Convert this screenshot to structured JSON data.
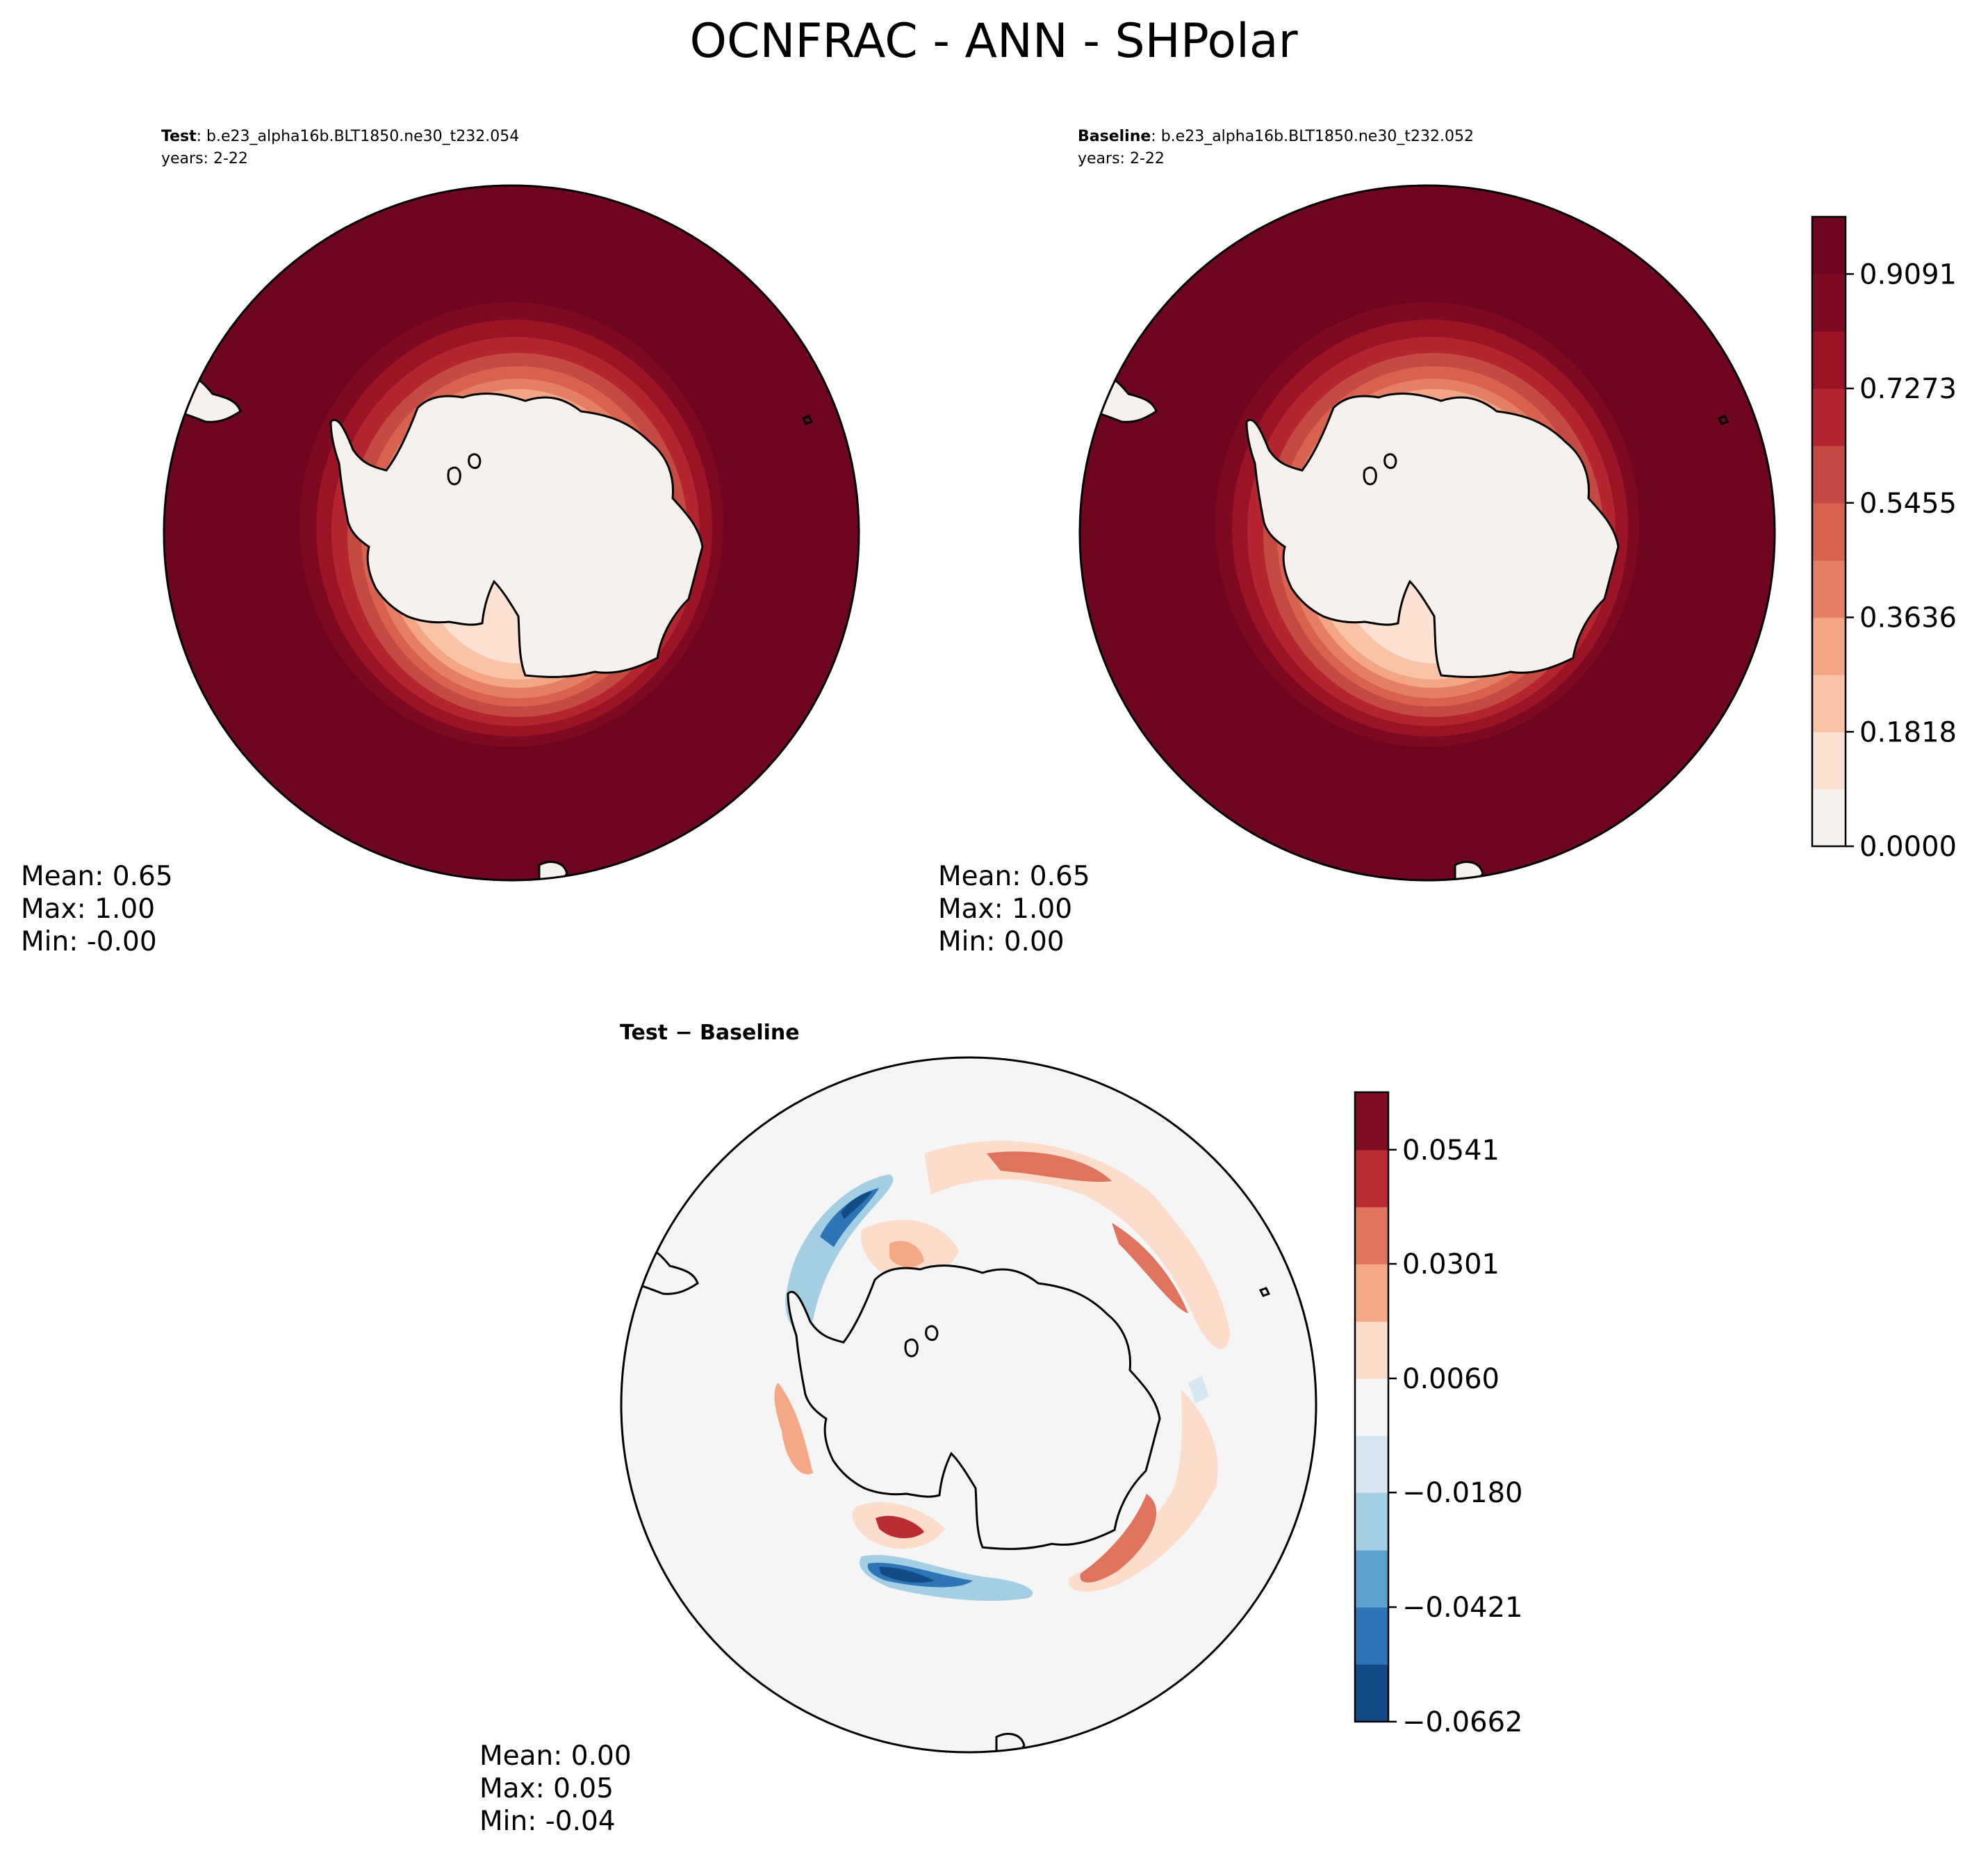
{
  "figure_title": "OCNFRAC - ANN - SHPolar",
  "colors": {
    "land": "#f7f1ee",
    "coast": "#000000",
    "diff_background": "#f5f5f5"
  },
  "chart_data": [
    {
      "type": "heatmap",
      "projection": "south-polar-stereographic",
      "panel": "test",
      "label_bold": "Test",
      "label_rest": ": b.e23_alpha16b.BLT1850.ne30_t232.054",
      "years": "years: 2-22",
      "stats": {
        "mean": "Mean:  0.65",
        "max": "Max:  1.00",
        "min": "Min: -0.00"
      },
      "variable": "OCNFRAC",
      "value_range": [
        0.0,
        1.0
      ],
      "description_values": {
        "open_ocean": 1.0,
        "antarctic_land": 0.0
      }
    },
    {
      "type": "heatmap",
      "projection": "south-polar-stereographic",
      "panel": "baseline",
      "label_bold": "Baseline",
      "label_rest": ": b.e23_alpha16b.BLT1850.ne30_t232.052",
      "years": "years: 2-22",
      "stats": {
        "mean": "Mean:  0.65",
        "max": "Max:  1.00",
        "min": "Min:  0.00"
      },
      "variable": "OCNFRAC",
      "value_range": [
        0.0,
        1.0
      ],
      "colorbar": {
        "levels": [
          0.0,
          0.0909,
          0.1818,
          0.2727,
          0.3636,
          0.4545,
          0.5455,
          0.6364,
          0.7273,
          0.8182,
          0.9091,
          1.0
        ],
        "tick_labels": [
          "0.0000",
          "0.1818",
          "0.3636",
          "0.5455",
          "0.7273",
          "0.9091"
        ],
        "colors": [
          "#f7f1ee",
          "#fde2d4",
          "#f9c3a8",
          "#f3a585",
          "#e47e65",
          "#d8624f",
          "#c44a43",
          "#b5252f",
          "#9b1426",
          "#7e0a22",
          "#6f0620"
        ]
      }
    },
    {
      "type": "heatmap",
      "projection": "south-polar-stereographic",
      "panel": "difference",
      "title": "Test − Baseline",
      "stats": {
        "mean": "Mean:  0.00",
        "max": "Max:  0.05",
        "min": "Min: -0.04"
      },
      "value_range": [
        -0.0662,
        0.0662
      ],
      "colorbar": {
        "levels": [
          -0.0662,
          -0.0541,
          -0.0421,
          -0.0301,
          -0.018,
          -0.006,
          0.006,
          0.018,
          0.0301,
          0.0421,
          0.0541,
          0.0662
        ],
        "tick_labels": [
          "−0.0662",
          "−0.0421",
          "−0.0180",
          "0.0060",
          "0.0301",
          "0.0541"
        ],
        "colors": [
          "#134b87",
          "#2d75b6",
          "#5aa1cf",
          "#a3cee3",
          "#d6e7f1",
          "#f5f5f5",
          "#fcdccb",
          "#f5a888",
          "#df735e",
          "#bb2c32",
          "#7f0e22"
        ]
      }
    }
  ]
}
